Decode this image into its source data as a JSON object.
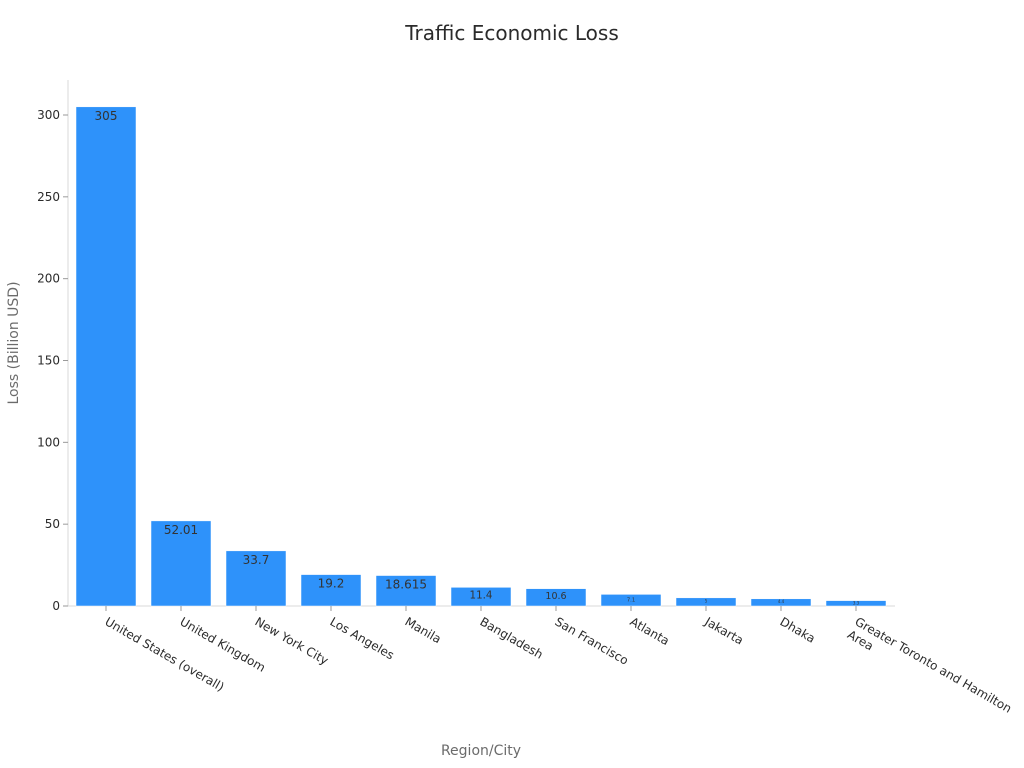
{
  "chart_data": {
    "type": "bar",
    "title": "Traffic Economic Loss",
    "xlabel": "Region/City",
    "ylabel": "Loss (Billion USD)",
    "categories": [
      "United States (overall)",
      "United Kingdom",
      "New York City",
      "Los Angeles",
      "Manila",
      "Bangladesh",
      "San Francisco",
      "Atlanta",
      "Jakarta",
      "Dhaka",
      "Greater Toronto and Hamilton Area"
    ],
    "values": [
      305,
      52.01,
      33.7,
      19.2,
      18.615,
      11.4,
      10.6,
      7.1,
      5,
      4.4,
      3.3
    ],
    "data_labels": [
      "305",
      "52.01",
      "33.7",
      "19.2",
      "18.615",
      "11.4",
      "10.6",
      "7.1",
      "5",
      "4.4",
      "3.3"
    ],
    "ylim": [
      0,
      320
    ],
    "yticks": [
      0,
      50,
      100,
      150,
      200,
      250,
      300
    ],
    "bar_color": "#2e92fa",
    "grid": false
  }
}
